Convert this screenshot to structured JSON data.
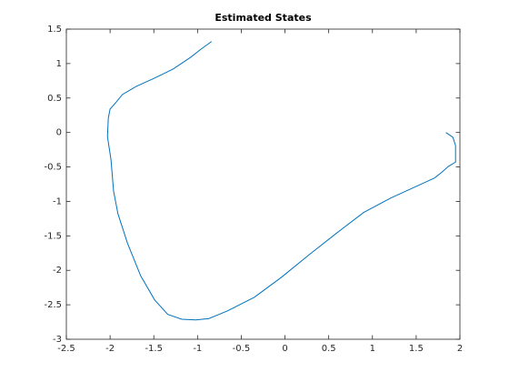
{
  "chart_data": {
    "type": "line",
    "title": "Estimated States",
    "series": [
      {
        "color": "#0072bd",
        "x": [
          1.84,
          1.92,
          1.95,
          1.95,
          1.87,
          1.79,
          1.71,
          1.52,
          1.21,
          0.9,
          0.59,
          0.28,
          -0.04,
          -0.35,
          -0.66,
          -0.87,
          -1.02,
          -1.18,
          -1.34,
          -1.49,
          -1.65,
          -1.8,
          -1.91,
          -1.96,
          -1.99,
          -2.03,
          -2.02,
          -2.0,
          -1.93,
          -1.86,
          -1.7,
          -1.49,
          -1.28,
          -1.08,
          -0.97,
          -0.84
        ],
        "values": [
          0.0,
          -0.07,
          -0.19,
          -0.43,
          -0.49,
          -0.58,
          -0.66,
          -0.77,
          -0.95,
          -1.16,
          -1.46,
          -1.77,
          -2.1,
          -2.39,
          -2.59,
          -2.7,
          -2.72,
          -2.71,
          -2.64,
          -2.43,
          -2.08,
          -1.61,
          -1.18,
          -0.85,
          -0.39,
          -0.06,
          0.21,
          0.34,
          0.44,
          0.55,
          0.67,
          0.79,
          0.92,
          1.09,
          1.2,
          1.32
        ]
      }
    ],
    "xlim": [
      -2.5,
      2
    ],
    "xticks": [
      -2.5,
      -2,
      -1.5,
      -1,
      -0.5,
      0,
      0.5,
      1,
      1.5,
      2
    ],
    "ylim": [
      -3,
      1.5
    ],
    "yticks": [
      -3,
      -2.5,
      -2,
      -1.5,
      -1,
      -0.5,
      0,
      0.5,
      1,
      1.5
    ],
    "grid": false
  }
}
